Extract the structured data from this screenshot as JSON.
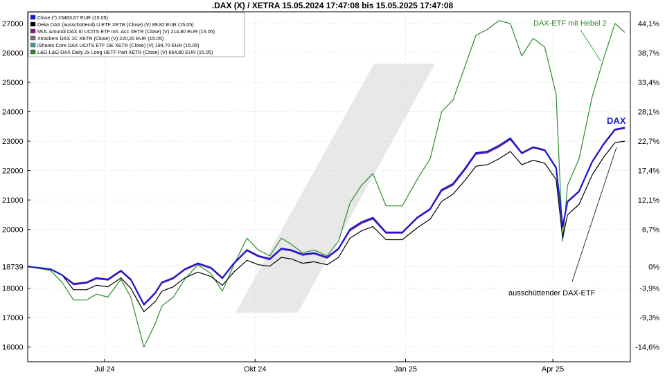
{
  "chart_data": {
    "type": "line",
    "title": ".DAX (X) / XETRA 15.05.2024 17:47:08 bis 15.05.2025 17:47:08",
    "x_ticks": [
      "Jul 24",
      "Okt 24",
      "Jan 25",
      "Apr 25"
    ],
    "y_ticks_left": [
      "27000",
      "26000",
      "25000",
      "24000",
      "23000",
      "22000",
      "21000",
      "20000",
      "18739",
      "18000",
      "17000",
      "16000"
    ],
    "y_ticks_right": [
      "44,1%",
      "38,7%",
      "33,4%",
      "28,1%",
      "22,7%",
      "17,4%",
      "12,1%",
      "6,7%",
      "0%",
      "-3,9%",
      "-9,3%",
      "-14,6%"
    ],
    "ylim": [
      15500,
      27400
    ],
    "legend": [
      {
        "label": "Close (*) 23463,67 EUR (15.05)",
        "color": "#1a1ad0"
      },
      {
        "label": "Deka DAX (ausschüttend) U.ETF XETR (Close) (V) 89,82 EUR (15.05)",
        "color": "#000000"
      },
      {
        "label": "MUL Amundi DAX III UCITS ETF Inh. Acc XETR (Close) (V) 214,80 EUR (15.05)",
        "color": "#8b1a8b"
      },
      {
        "label": "Xtrackers DAX 1C XETR (Close) (V) 220,20 EUR (15.05)",
        "color": "#707070"
      },
      {
        "label": "iShares Core DAX UCITS ETF DE XETR (Close) (V) 194,70 EUR (15.05)",
        "color": "#40a0a0"
      },
      {
        "label": "L&G-L&G DAX Daily 2x Long UETF Part XETR (Close) (V) 664,80 EUR (15.05)",
        "color": "#2a8a2a"
      }
    ],
    "annotations": [
      {
        "text": "DAX-ETF mit Hebel 2",
        "color": "#2a8a2a"
      },
      {
        "text": "DAX",
        "color": "#1a1ad0"
      },
      {
        "text": "ausschüttender DAX-ETF",
        "color": "#000000"
      }
    ],
    "x_dates": [
      "2024-05-15",
      "2024-05-29",
      "2024-06-05",
      "2024-06-12",
      "2024-06-20",
      "2024-06-26",
      "2024-07-03",
      "2024-07-11",
      "2024-07-17",
      "2024-07-25",
      "2024-08-01",
      "2024-08-05",
      "2024-08-12",
      "2024-08-19",
      "2024-08-27",
      "2024-09-04",
      "2024-09-11",
      "2024-09-18",
      "2024-09-26",
      "2024-10-03",
      "2024-10-10",
      "2024-10-17",
      "2024-10-23",
      "2024-10-30",
      "2024-11-06",
      "2024-11-14",
      "2024-11-21",
      "2024-11-28",
      "2024-12-05",
      "2024-12-12",
      "2024-12-20",
      "2024-12-30",
      "2025-01-08",
      "2025-01-16",
      "2025-01-23",
      "2025-01-30",
      "2025-02-06",
      "2025-02-13",
      "2025-02-20",
      "2025-02-27",
      "2025-03-06",
      "2025-03-13",
      "2025-03-20",
      "2025-03-27",
      "2025-04-03",
      "2025-04-07",
      "2025-04-10",
      "2025-04-17",
      "2025-04-25",
      "2025-05-02",
      "2025-05-09",
      "2025-05-15"
    ],
    "series": [
      {
        "name": "Close (*) 23463,67 EUR (15.05)",
        "color": "#1a1ad0",
        "values": [
          18739,
          18650,
          18450,
          18150,
          18200,
          18350,
          18300,
          18600,
          18300,
          17450,
          17850,
          18200,
          18350,
          18650,
          18850,
          18700,
          18350,
          18850,
          19300,
          19100,
          19000,
          19350,
          19300,
          19150,
          19200,
          19050,
          19350,
          20000,
          20250,
          20400,
          19900,
          19900,
          20400,
          20700,
          21350,
          21550,
          22050,
          22600,
          22650,
          22850,
          23100,
          22600,
          22800,
          22700,
          22100,
          20100,
          20950,
          21300,
          22300,
          22900,
          23400,
          23464
        ]
      },
      {
        "name": "Deka DAX (ausschüttend) U.ETF XETR (Close) (V) 89,82 EUR (15.05)",
        "color": "#000000",
        "values": [
          18739,
          18650,
          18450,
          17950,
          17950,
          18100,
          18050,
          18350,
          18000,
          17200,
          17550,
          17900,
          18050,
          18350,
          18550,
          18400,
          18100,
          18550,
          18950,
          18800,
          18750,
          19050,
          19000,
          18850,
          18900,
          18800,
          19050,
          19700,
          19950,
          20100,
          19650,
          19650,
          20050,
          20350,
          20950,
          21200,
          21650,
          22150,
          22200,
          22400,
          22650,
          22200,
          22350,
          22250,
          21700,
          19700,
          20500,
          20850,
          21850,
          22450,
          22950,
          23000
        ]
      },
      {
        "name": "MUL Amundi DAX III UCITS ETF Inh. Acc XETR (Close) (V) 214,80 EUR (15.05)",
        "color": "#8b1a8b",
        "values": [
          18739,
          18640,
          18440,
          18120,
          18170,
          18320,
          18270,
          18570,
          18270,
          17420,
          17820,
          18170,
          18320,
          18620,
          18820,
          18670,
          18320,
          18820,
          19270,
          19070,
          18970,
          19320,
          19270,
          19120,
          19170,
          19020,
          19320,
          19950,
          20200,
          20350,
          19870,
          19870,
          20370,
          20670,
          21300,
          21500,
          22000,
          22550,
          22600,
          22800,
          23050,
          22570,
          22770,
          22670,
          22070,
          20080,
          20920,
          21270,
          22270,
          22870,
          23370,
          23430
        ]
      },
      {
        "name": "Xtrackers DAX 1C XETR (Close) (V) 220,20 EUR (15.05)",
        "color": "#707070",
        "values": [
          18739,
          18645,
          18445,
          18140,
          18190,
          18340,
          18290,
          18590,
          18290,
          17440,
          17840,
          18190,
          18340,
          18640,
          18840,
          18690,
          18340,
          18840,
          19290,
          19090,
          18990,
          19340,
          19290,
          19140,
          19190,
          19040,
          19340,
          19980,
          20230,
          20380,
          19890,
          19890,
          20390,
          20690,
          21330,
          21530,
          22030,
          22580,
          22630,
          22830,
          23080,
          22590,
          22790,
          22690,
          22090,
          20090,
          20940,
          21290,
          22290,
          22890,
          23390,
          23450
        ]
      },
      {
        "name": "iShares Core DAX UCITS ETF DE XETR (Close) (V) 194,70 EUR (15.05)",
        "color": "#40a0a0",
        "values": [
          18739,
          18642,
          18442,
          18130,
          18180,
          18330,
          18280,
          18580,
          18280,
          17430,
          17830,
          18180,
          18330,
          18630,
          18830,
          18680,
          18330,
          18830,
          19280,
          19080,
          18980,
          19330,
          19280,
          19130,
          19180,
          19030,
          19330,
          19970,
          20220,
          20370,
          19880,
          19880,
          20380,
          20680,
          21320,
          21520,
          22020,
          22570,
          22620,
          22820,
          23070,
          22580,
          22780,
          22680,
          22080,
          20085,
          20930,
          21280,
          22280,
          22880,
          23380,
          23440
        ]
      },
      {
        "name": "L&G-L&G DAX Daily 2x Long UETF Part XETR (Close) (V) 664,80 EUR (15.05)",
        "color": "#2a8a2a",
        "values": [
          18739,
          18600,
          18200,
          17600,
          17600,
          17800,
          17700,
          18300,
          17700,
          16000,
          16800,
          17400,
          17700,
          18300,
          18800,
          18500,
          17900,
          18800,
          19700,
          19300,
          19100,
          19700,
          19500,
          19200,
          19300,
          19100,
          19600,
          20900,
          21500,
          21900,
          20800,
          20800,
          21700,
          22400,
          24000,
          24400,
          25500,
          26600,
          26800,
          27100,
          27000,
          25900,
          26500,
          26200,
          24600,
          19600,
          21500,
          22400,
          24500,
          25800,
          27000,
          26700
        ]
      }
    ]
  }
}
